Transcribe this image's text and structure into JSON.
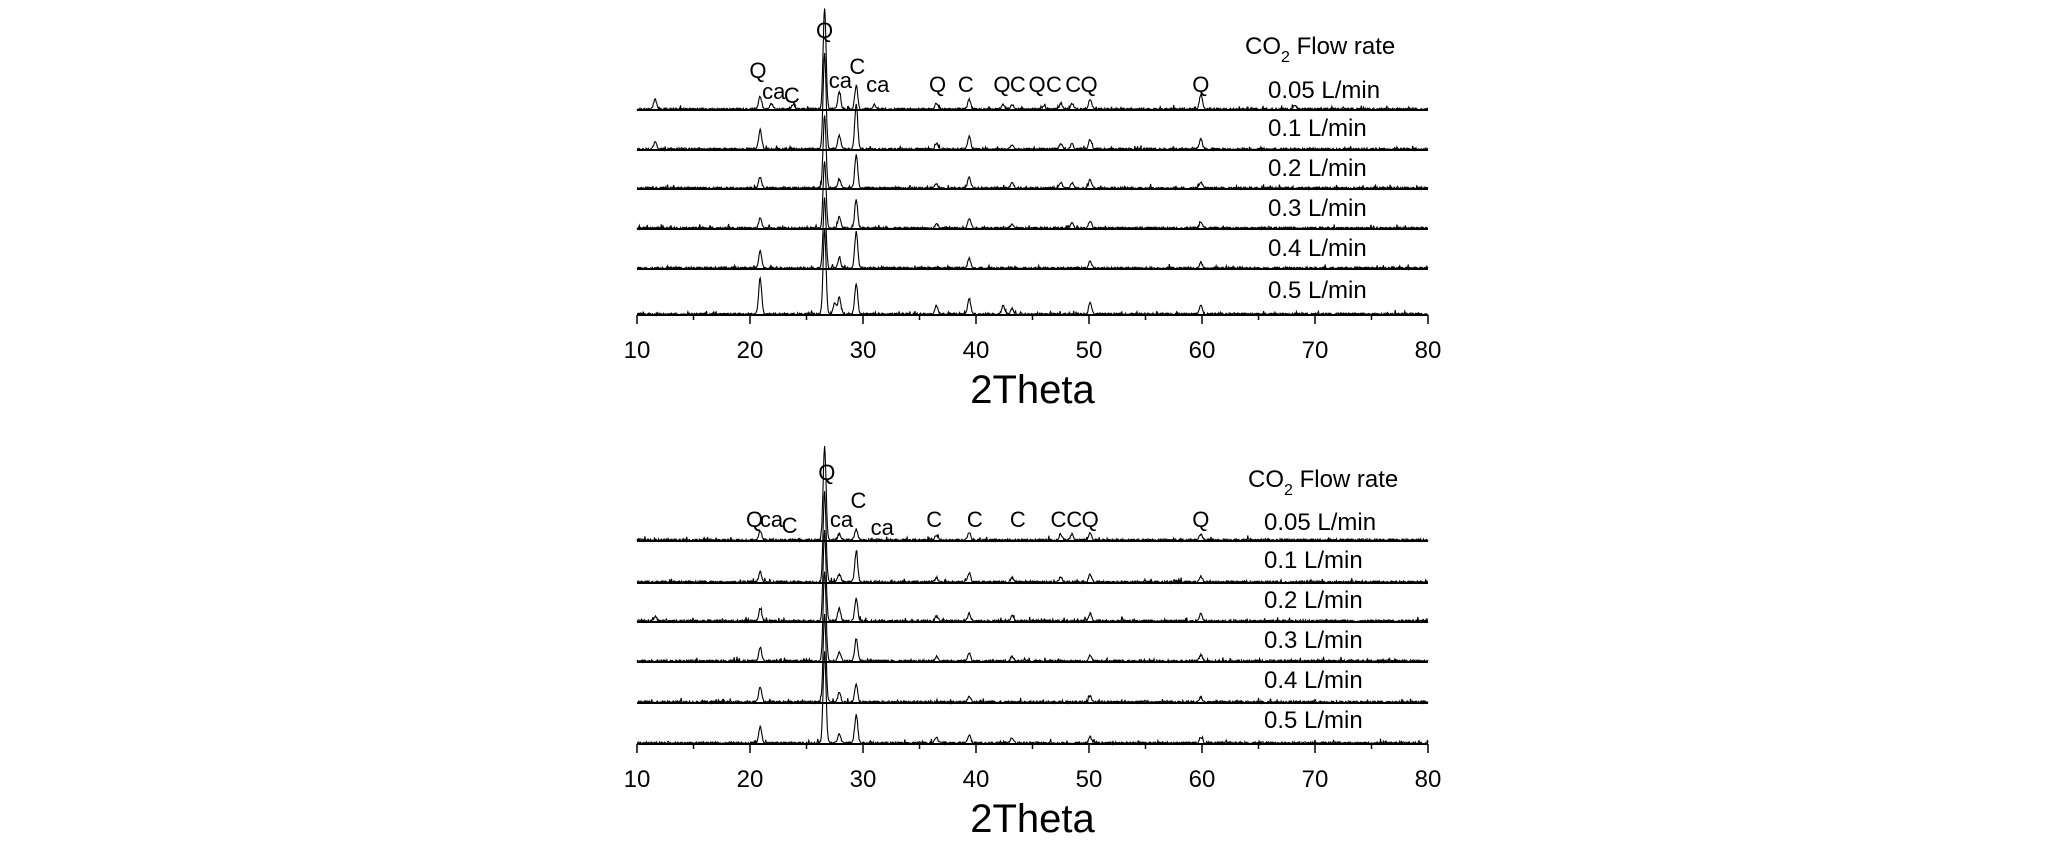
{
  "chart_data": [
    {
      "type": "line",
      "xlabel": "2Theta",
      "xlim": [
        10,
        80
      ],
      "xticks": [
        10,
        20,
        30,
        40,
        50,
        60,
        70,
        80
      ],
      "legend_title": "CO2 Flow rate",
      "legend_title_parts": {
        "main": "CO",
        "sub": "2",
        "rest": " Flow rate"
      },
      "series": [
        {
          "name": "0.05 L/min",
          "peaks": [
            [
              11.6,
              0.35
            ],
            [
              20.9,
              0.45
            ],
            [
              21.9,
              0.2
            ],
            [
              23.8,
              0.15
            ],
            [
              26.6,
              3.6
            ],
            [
              27.9,
              0.6
            ],
            [
              29.4,
              0.85
            ],
            [
              31.0,
              0.15
            ],
            [
              36.5,
              0.2
            ],
            [
              39.4,
              0.35
            ],
            [
              42.4,
              0.15
            ],
            [
              43.2,
              0.15
            ],
            [
              46.0,
              0.1
            ],
            [
              47.5,
              0.2
            ],
            [
              48.5,
              0.2
            ],
            [
              50.1,
              0.35
            ],
            [
              59.9,
              0.5
            ],
            [
              68.2,
              0.15
            ]
          ]
        },
        {
          "name": "0.1 L/min",
          "peaks": [
            [
              11.6,
              0.25
            ],
            [
              20.9,
              0.7
            ],
            [
              26.6,
              3.4
            ],
            [
              27.9,
              0.5
            ],
            [
              29.4,
              1.6
            ],
            [
              36.5,
              0.2
            ],
            [
              39.4,
              0.45
            ],
            [
              43.2,
              0.15
            ],
            [
              47.5,
              0.2
            ],
            [
              48.5,
              0.2
            ],
            [
              50.1,
              0.35
            ],
            [
              59.9,
              0.35
            ]
          ]
        },
        {
          "name": "0.2 L/min",
          "peaks": [
            [
              20.9,
              0.4
            ],
            [
              26.6,
              2.6
            ],
            [
              27.9,
              0.3
            ],
            [
              29.4,
              1.2
            ],
            [
              36.5,
              0.15
            ],
            [
              39.4,
              0.4
            ],
            [
              43.2,
              0.2
            ],
            [
              47.5,
              0.2
            ],
            [
              48.5,
              0.2
            ],
            [
              50.1,
              0.3
            ],
            [
              59.9,
              0.2
            ]
          ]
        },
        {
          "name": "0.3 L/min",
          "peaks": [
            [
              20.9,
              0.35
            ],
            [
              26.6,
              2.4
            ],
            [
              27.9,
              0.4
            ],
            [
              29.4,
              1.0
            ],
            [
              36.5,
              0.15
            ],
            [
              39.4,
              0.35
            ],
            [
              43.2,
              0.15
            ],
            [
              48.5,
              0.2
            ],
            [
              50.1,
              0.25
            ],
            [
              59.9,
              0.2
            ]
          ]
        },
        {
          "name": "0.4 L/min",
          "peaks": [
            [
              20.9,
              0.6
            ],
            [
              26.6,
              2.5
            ],
            [
              27.9,
              0.35
            ],
            [
              29.4,
              1.3
            ],
            [
              39.4,
              0.35
            ],
            [
              50.1,
              0.25
            ],
            [
              59.9,
              0.2
            ]
          ]
        },
        {
          "name": "0.5 L/min",
          "peaks": [
            [
              20.9,
              1.3
            ],
            [
              26.6,
              3.0
            ],
            [
              27.5,
              0.4
            ],
            [
              27.9,
              0.6
            ],
            [
              29.4,
              1.1
            ],
            [
              36.5,
              0.3
            ],
            [
              39.4,
              0.55
            ],
            [
              42.4,
              0.3
            ],
            [
              43.2,
              0.2
            ],
            [
              50.1,
              0.4
            ],
            [
              59.9,
              0.3
            ]
          ]
        }
      ],
      "phase_labels": [
        {
          "text": "Q",
          "x": 20.7
        },
        {
          "text": "ca",
          "x": 22.1
        },
        {
          "text": "C",
          "x": 23.7
        },
        {
          "text": "Q",
          "x": 26.6
        },
        {
          "text": "ca",
          "x": 28.0
        },
        {
          "text": "C",
          "x": 29.5
        },
        {
          "text": "ca",
          "x": 31.3
        },
        {
          "text": "Q",
          "x": 36.6
        },
        {
          "text": "C",
          "x": 39.1
        },
        {
          "text": "Q",
          "x": 42.3
        },
        {
          "text": "C",
          "x": 43.7
        },
        {
          "text": "Q",
          "x": 45.4
        },
        {
          "text": "C",
          "x": 46.9
        },
        {
          "text": "C",
          "x": 48.6
        },
        {
          "text": "Q",
          "x": 50.0
        },
        {
          "text": "Q",
          "x": 59.9
        }
      ]
    },
    {
      "type": "line",
      "xlabel": "2Theta",
      "xlim": [
        10,
        80
      ],
      "xticks": [
        10,
        20,
        30,
        40,
        50,
        60,
        70,
        80
      ],
      "legend_title": "CO2 Flow rate",
      "legend_title_parts": {
        "main": "CO",
        "sub": "2",
        "rest": " Flow rate"
      },
      "series": [
        {
          "name": "0.05 L/min",
          "peaks": [
            [
              20.9,
              0.3
            ],
            [
              26.6,
              3.1
            ],
            [
              27.9,
              0.2
            ],
            [
              29.4,
              0.35
            ],
            [
              36.5,
              0.15
            ],
            [
              39.4,
              0.25
            ],
            [
              47.5,
              0.2
            ],
            [
              48.5,
              0.2
            ],
            [
              50.1,
              0.25
            ],
            [
              59.9,
              0.2
            ]
          ]
        },
        {
          "name": "0.1 L/min",
          "peaks": [
            [
              20.9,
              0.35
            ],
            [
              26.6,
              3.0
            ],
            [
              27.9,
              0.25
            ],
            [
              29.4,
              1.0
            ],
            [
              36.5,
              0.15
            ],
            [
              39.4,
              0.3
            ],
            [
              43.2,
              0.15
            ],
            [
              47.5,
              0.15
            ],
            [
              50.1,
              0.25
            ],
            [
              59.9,
              0.2
            ]
          ]
        },
        {
          "name": "0.2 L/min",
          "peaks": [
            [
              11.6,
              0.15
            ],
            [
              20.9,
              0.4
            ],
            [
              26.6,
              3.0
            ],
            [
              27.9,
              0.4
            ],
            [
              29.4,
              0.75
            ],
            [
              36.5,
              0.15
            ],
            [
              39.4,
              0.25
            ],
            [
              43.2,
              0.15
            ],
            [
              50.1,
              0.25
            ],
            [
              59.9,
              0.25
            ]
          ]
        },
        {
          "name": "0.3 L/min",
          "peaks": [
            [
              20.9,
              0.45
            ],
            [
              26.6,
              3.0
            ],
            [
              27.9,
              0.3
            ],
            [
              29.4,
              0.75
            ],
            [
              36.5,
              0.15
            ],
            [
              39.4,
              0.25
            ],
            [
              43.2,
              0.15
            ],
            [
              50.1,
              0.2
            ],
            [
              59.9,
              0.2
            ]
          ]
        },
        {
          "name": "0.4 L/min",
          "peaks": [
            [
              20.9,
              0.5
            ],
            [
              26.6,
              2.9
            ],
            [
              27.9,
              0.3
            ],
            [
              29.4,
              0.6
            ],
            [
              39.4,
              0.2
            ],
            [
              50.1,
              0.2
            ],
            [
              59.9,
              0.15
            ]
          ]
        },
        {
          "name": "0.5 L/min",
          "peaks": [
            [
              20.9,
              0.55
            ],
            [
              26.6,
              3.0
            ],
            [
              27.9,
              0.3
            ],
            [
              29.4,
              0.95
            ],
            [
              36.5,
              0.2
            ],
            [
              39.4,
              0.25
            ],
            [
              43.2,
              0.15
            ],
            [
              50.1,
              0.2
            ],
            [
              59.9,
              0.2
            ]
          ]
        }
      ],
      "phase_labels": [
        {
          "text": "Q",
          "x": 20.4
        },
        {
          "text": "ca",
          "x": 21.9
        },
        {
          "text": "C",
          "x": 23.5
        },
        {
          "text": "Q",
          "x": 26.8
        },
        {
          "text": "ca",
          "x": 28.1
        },
        {
          "text": "C",
          "x": 29.6
        },
        {
          "text": "ca",
          "x": 31.7
        },
        {
          "text": "C",
          "x": 36.3
        },
        {
          "text": "C",
          "x": 39.9
        },
        {
          "text": "C",
          "x": 43.7
        },
        {
          "text": "C",
          "x": 47.3
        },
        {
          "text": "C",
          "x": 48.7
        },
        {
          "text": "Q",
          "x": 50.1
        },
        {
          "text": "Q",
          "x": 59.9
        }
      ]
    }
  ]
}
